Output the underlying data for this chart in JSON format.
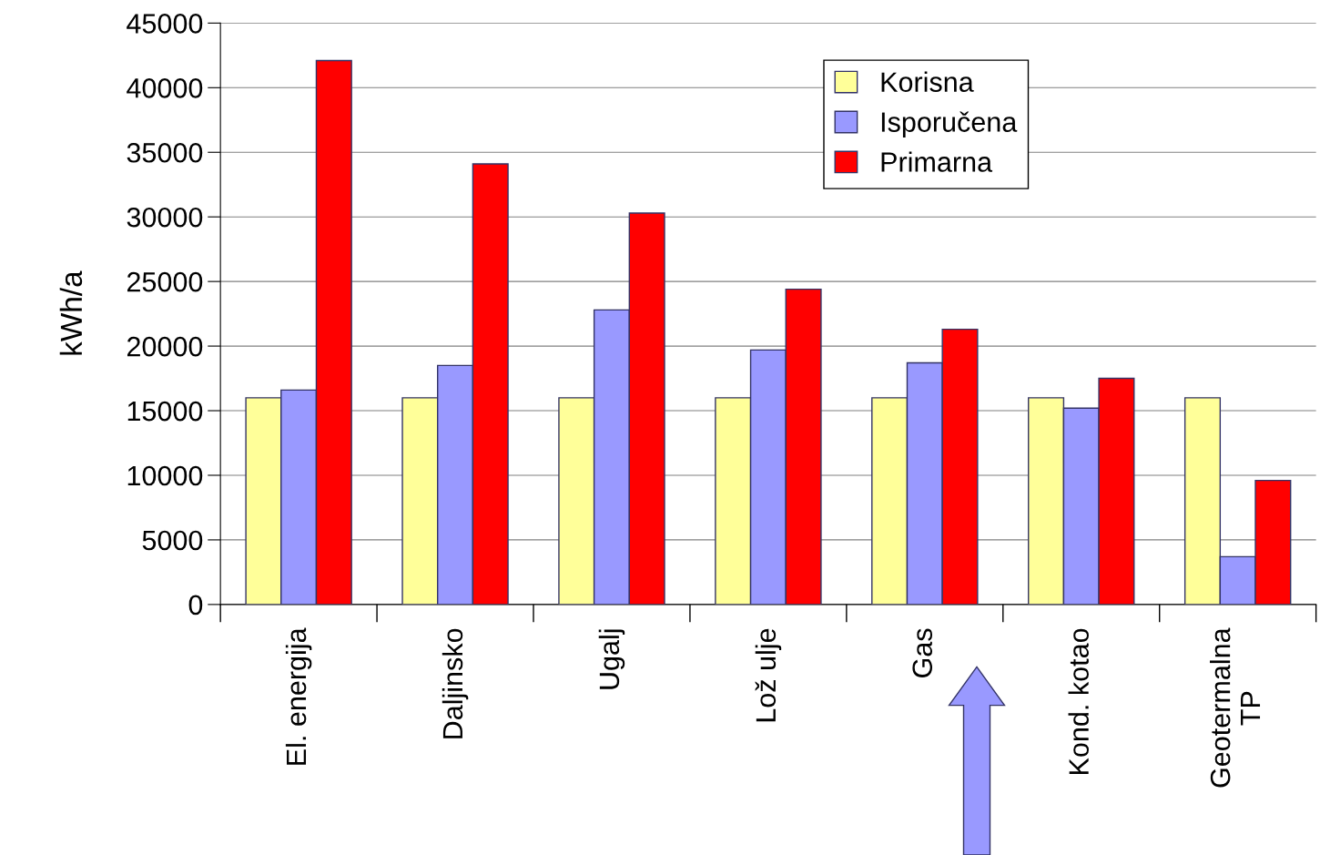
{
  "chart_data": {
    "type": "bar",
    "ylabel": "kWh/a",
    "categories": [
      "El. energija",
      "Daljinsko",
      "Ugalj",
      "Lož ulje",
      "Gas",
      "Kond. kotao",
      "Geotermalna\nTP"
    ],
    "series": [
      {
        "name": "Korisna",
        "color": "#ffff99",
        "values": [
          16000,
          16000,
          16000,
          16000,
          16000,
          16000,
          16000
        ]
      },
      {
        "name": "Isporučena",
        "color": "#9999ff",
        "values": [
          16600,
          18500,
          22800,
          19700,
          18700,
          15200,
          3700
        ]
      },
      {
        "name": "Primarna",
        "color": "#ff0000",
        "values": [
          42100,
          34100,
          30300,
          24400,
          21300,
          17500,
          9600
        ]
      }
    ],
    "ylim": [
      0,
      45000
    ],
    "yticks": [
      0,
      5000,
      10000,
      15000,
      20000,
      25000,
      30000,
      35000,
      40000,
      45000
    ],
    "grid": "y",
    "legend": "top right"
  }
}
